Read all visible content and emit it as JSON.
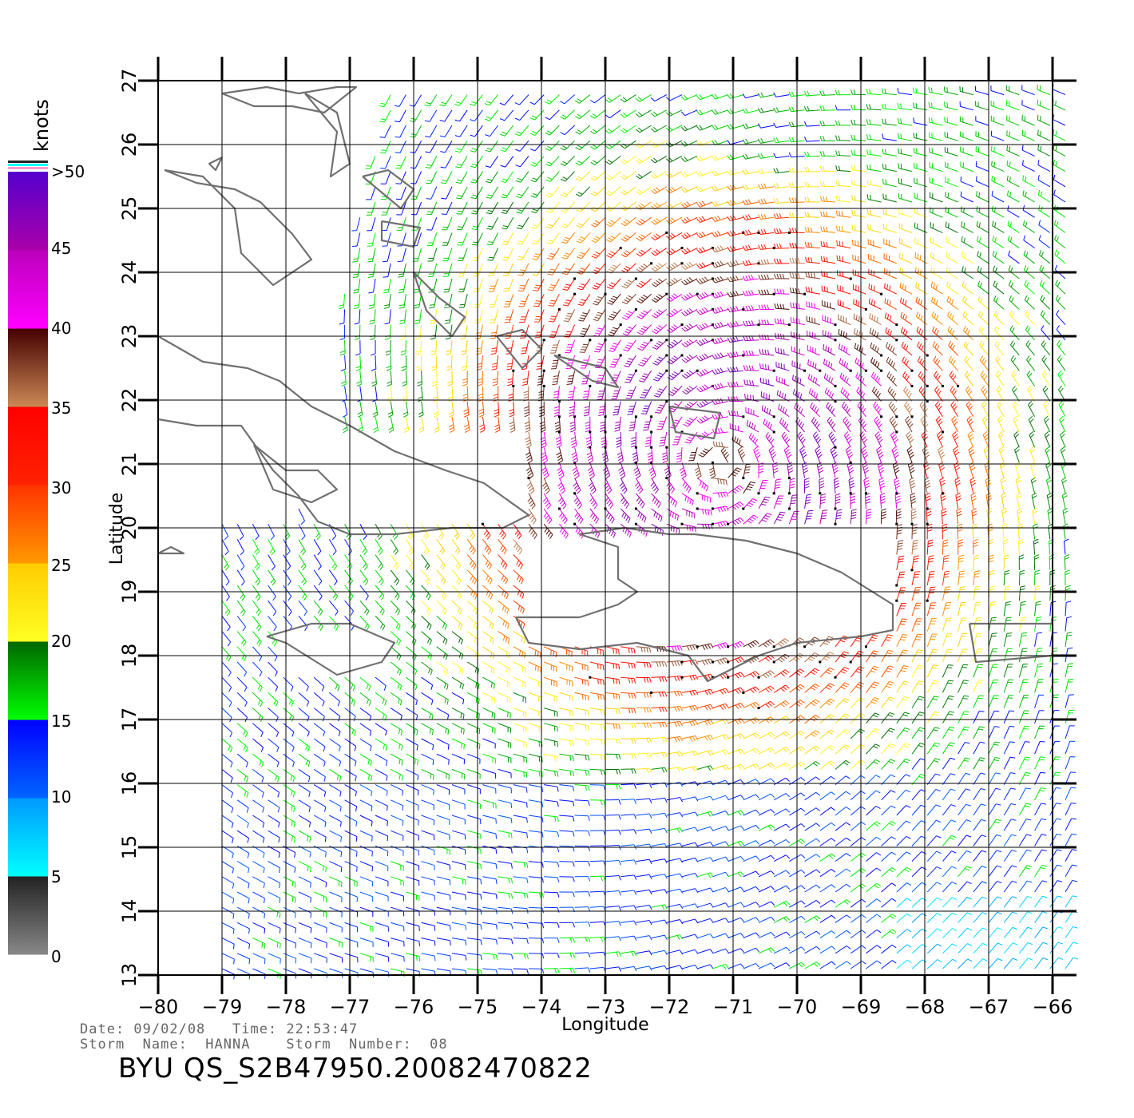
{
  "colorbar": {
    "unit": "knots",
    "labels": [
      ">50",
      "45",
      "40",
      "35",
      "30",
      "25",
      "20",
      "15",
      "10",
      "5",
      "0"
    ],
    "segments": [
      {
        "from": 0,
        "to": 5,
        "top": "#222222",
        "bottom": "#888888"
      },
      {
        "from": 5,
        "to": 10,
        "top": "#0099ff",
        "bottom": "#00ffff"
      },
      {
        "from": 10,
        "to": 15,
        "top": "#0000ff",
        "bottom": "#0066ff"
      },
      {
        "from": 15,
        "to": 20,
        "top": "#006600",
        "bottom": "#00ff00"
      },
      {
        "from": 20,
        "to": 25,
        "top": "#ffcc00",
        "bottom": "#ffff22"
      },
      {
        "from": 25,
        "to": 30,
        "top": "#ff3300",
        "bottom": "#ff9900"
      },
      {
        "from": 30,
        "to": 35,
        "top": "#ff0000",
        "bottom": "#ff2200"
      },
      {
        "from": 35,
        "to": 40,
        "top": "#440000",
        "bottom": "#cc8855"
      },
      {
        "from": 40,
        "to": 45,
        "top": "#bb00bb",
        "bottom": "#ff00ff"
      },
      {
        "from": 45,
        "to": 50,
        "top": "#5500cc",
        "bottom": "#aa00aa"
      }
    ]
  },
  "map": {
    "lon_range": [
      -80,
      -66
    ],
    "lat_range": [
      13,
      27
    ],
    "lon_ticks": [
      "−80",
      "−79",
      "−78",
      "−77",
      "−76",
      "−75",
      "−74",
      "−73",
      "−72",
      "−71",
      "−70",
      "−69",
      "−68",
      "−67",
      "−66"
    ],
    "lat_ticks": [
      "13",
      "14",
      "15",
      "16",
      "17",
      "18",
      "19",
      "20",
      "21",
      "22",
      "23",
      "24",
      "25",
      "26",
      "27"
    ],
    "xlabel": "Longitude",
    "ylabel": "Latitude",
    "coast_color": "#707070",
    "coastlines": [
      [
        [
          -79.9,
          25.6
        ],
        [
          -79.3,
          25.5
        ],
        [
          -78.8,
          25.0
        ],
        [
          -78.7,
          24.3
        ],
        [
          -78.2,
          23.8
        ],
        [
          -77.6,
          24.2
        ],
        [
          -77.9,
          24.6
        ],
        [
          -78.4,
          25.1
        ],
        [
          -78.8,
          25.3
        ],
        [
          -79.4,
          25.4
        ],
        [
          -79.9,
          25.6
        ]
      ],
      [
        [
          -79.0,
          26.8
        ],
        [
          -78.5,
          26.6
        ],
        [
          -77.9,
          26.6
        ],
        [
          -77.4,
          26.5
        ],
        [
          -76.9,
          26.9
        ],
        [
          -77.2,
          26.9
        ],
        [
          -77.8,
          26.8
        ],
        [
          -78.3,
          26.9
        ],
        [
          -79.0,
          26.8
        ]
      ],
      [
        [
          -77.7,
          26.8
        ],
        [
          -77.2,
          26.2
        ],
        [
          -77.3,
          25.5
        ],
        [
          -77.0,
          25.7
        ],
        [
          -77.2,
          26.5
        ],
        [
          -77.7,
          26.8
        ]
      ],
      [
        [
          -76.8,
          25.5
        ],
        [
          -76.2,
          25.0
        ],
        [
          -76.0,
          25.3
        ],
        [
          -76.4,
          25.6
        ],
        [
          -76.8,
          25.5
        ]
      ],
      [
        [
          -76.5,
          24.8
        ],
        [
          -75.9,
          24.7
        ],
        [
          -76.0,
          24.4
        ],
        [
          -76.5,
          24.5
        ],
        [
          -76.5,
          24.8
        ]
      ],
      [
        [
          -76.0,
          24.0
        ],
        [
          -75.6,
          23.6
        ],
        [
          -75.2,
          23.3
        ],
        [
          -75.4,
          23.0
        ],
        [
          -75.8,
          23.4
        ],
        [
          -76.0,
          24.0
        ]
      ],
      [
        [
          -74.7,
          23.0
        ],
        [
          -74.3,
          22.5
        ],
        [
          -74.0,
          22.8
        ],
        [
          -74.3,
          23.1
        ],
        [
          -74.7,
          23.0
        ]
      ],
      [
        [
          -73.8,
          22.7
        ],
        [
          -73.0,
          22.5
        ],
        [
          -72.8,
          22.2
        ],
        [
          -73.2,
          22.3
        ],
        [
          -73.8,
          22.7
        ]
      ],
      [
        [
          -72.0,
          21.9
        ],
        [
          -71.2,
          21.8
        ],
        [
          -71.3,
          21.4
        ],
        [
          -71.9,
          21.5
        ],
        [
          -72.0,
          21.9
        ]
      ],
      [
        [
          -80.0,
          23.0
        ],
        [
          -79.3,
          22.6
        ],
        [
          -78.6,
          22.5
        ],
        [
          -78.1,
          22.3
        ],
        [
          -77.6,
          21.9
        ],
        [
          -77.0,
          21.6
        ],
        [
          -76.3,
          21.2
        ],
        [
          -75.5,
          20.9
        ],
        [
          -74.9,
          20.7
        ],
        [
          -74.2,
          20.2
        ],
        [
          -74.6,
          20.0
        ],
        [
          -75.4,
          20.0
        ],
        [
          -76.3,
          19.9
        ],
        [
          -77.0,
          19.9
        ],
        [
          -77.5,
          20.1
        ],
        [
          -77.8,
          20.5
        ],
        [
          -78.2,
          20.9
        ],
        [
          -78.7,
          21.6
        ],
        [
          -79.4,
          21.6
        ],
        [
          -80.0,
          21.7
        ]
      ],
      [
        [
          -78.5,
          21.3
        ],
        [
          -78.0,
          20.9
        ],
        [
          -77.5,
          20.9
        ],
        [
          -77.2,
          20.6
        ],
        [
          -77.6,
          20.4
        ],
        [
          -78.2,
          20.6
        ],
        [
          -78.5,
          21.3
        ]
      ],
      [
        [
          -78.3,
          18.3
        ],
        [
          -77.6,
          18.5
        ],
        [
          -77.0,
          18.5
        ],
        [
          -76.3,
          18.2
        ],
        [
          -76.5,
          17.9
        ],
        [
          -77.2,
          17.7
        ],
        [
          -78.0,
          18.2
        ],
        [
          -78.3,
          18.3
        ]
      ],
      [
        [
          -74.4,
          18.6
        ],
        [
          -73.4,
          18.6
        ],
        [
          -72.8,
          18.8
        ],
        [
          -72.5,
          19.0
        ],
        [
          -72.8,
          19.2
        ],
        [
          -72.8,
          19.7
        ],
        [
          -73.4,
          19.9
        ],
        [
          -72.7,
          20.0
        ],
        [
          -72.0,
          19.9
        ],
        [
          -71.6,
          19.9
        ],
        [
          -70.8,
          19.8
        ],
        [
          -70.0,
          19.6
        ],
        [
          -69.3,
          19.3
        ],
        [
          -68.5,
          18.8
        ],
        [
          -68.5,
          18.4
        ],
        [
          -69.0,
          18.3
        ],
        [
          -70.0,
          18.2
        ],
        [
          -70.6,
          18.0
        ],
        [
          -71.0,
          17.8
        ],
        [
          -71.4,
          17.6
        ],
        [
          -71.7,
          18.0
        ],
        [
          -72.5,
          18.2
        ],
        [
          -73.4,
          18.1
        ],
        [
          -74.2,
          18.2
        ],
        [
          -74.4,
          18.6
        ]
      ],
      [
        [
          -67.3,
          18.5
        ],
        [
          -66.0,
          18.5
        ],
        [
          -66.0,
          18.0
        ],
        [
          -67.2,
          17.9
        ],
        [
          -67.3,
          18.5
        ]
      ],
      [
        [
          -80.0,
          19.6
        ],
        [
          -79.8,
          19.7
        ],
        [
          -79.6,
          19.6
        ],
        [
          -80.0,
          19.6
        ]
      ],
      [
        [
          -79.0,
          25.8
        ],
        [
          -79.2,
          25.7
        ],
        [
          -79.1,
          25.6
        ],
        [
          -79.0,
          25.8
        ]
      ]
    ]
  },
  "info": {
    "line1": "Date: 09/02/08   Time: 22:53:47",
    "line2": "Storm  Name:  HANNA    Storm  Number:  08",
    "product": "BYU  QS_S2B47950.20082470822"
  }
}
